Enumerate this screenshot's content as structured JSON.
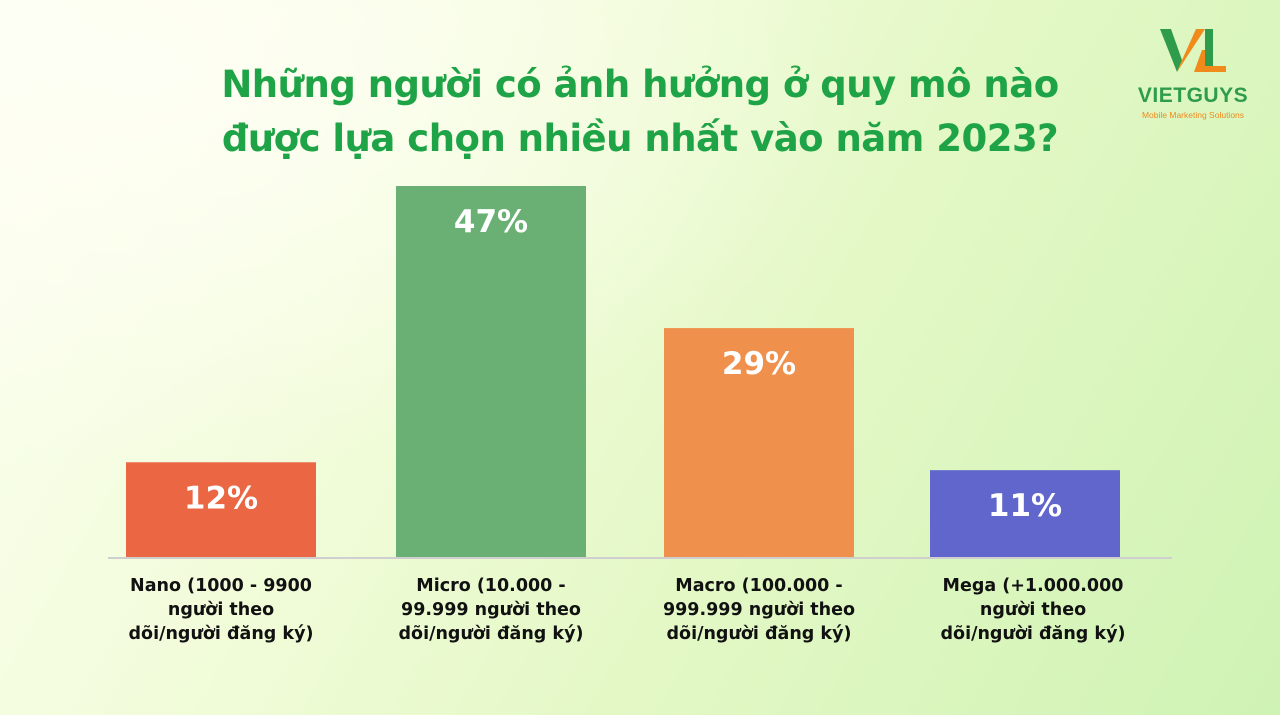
{
  "title": {
    "line1": "Những người có ảnh hưởng ở quy mô nào",
    "line2": "được lựa chọn nhiều nhất vào năm 2023?"
  },
  "logo": {
    "name": "VIETGUYS",
    "tagline": "Mobile Marketing Solutions",
    "icon": "vl-logo-icon"
  },
  "colors": {
    "title": "#1fa347",
    "nano": "#eb6744",
    "micro": "#6aaf73",
    "macro": "#ef914c",
    "mega": "#6066cc",
    "axis": "#cfcfcf"
  },
  "chart_data": {
    "type": "bar",
    "categories": [
      [
        "Nano (1000 - 9900",
        "người theo",
        "dõi/người đăng ký)"
      ],
      [
        "Micro (10.000 -",
        "99.999 người theo",
        "dõi/người đăng ký)"
      ],
      [
        "Macro (100.000 -",
        "999.999 người theo",
        "dõi/người đăng ký)"
      ],
      [
        "Mega (+1.000.000",
        "người theo",
        "dõi/người đăng ký)"
      ]
    ],
    "values": [
      12,
      47,
      29,
      11
    ],
    "value_labels": [
      "12%",
      "47%",
      "29%",
      "11%"
    ],
    "unit": "%",
    "ylim": [
      0,
      47
    ],
    "grid": false,
    "legend": "none"
  }
}
